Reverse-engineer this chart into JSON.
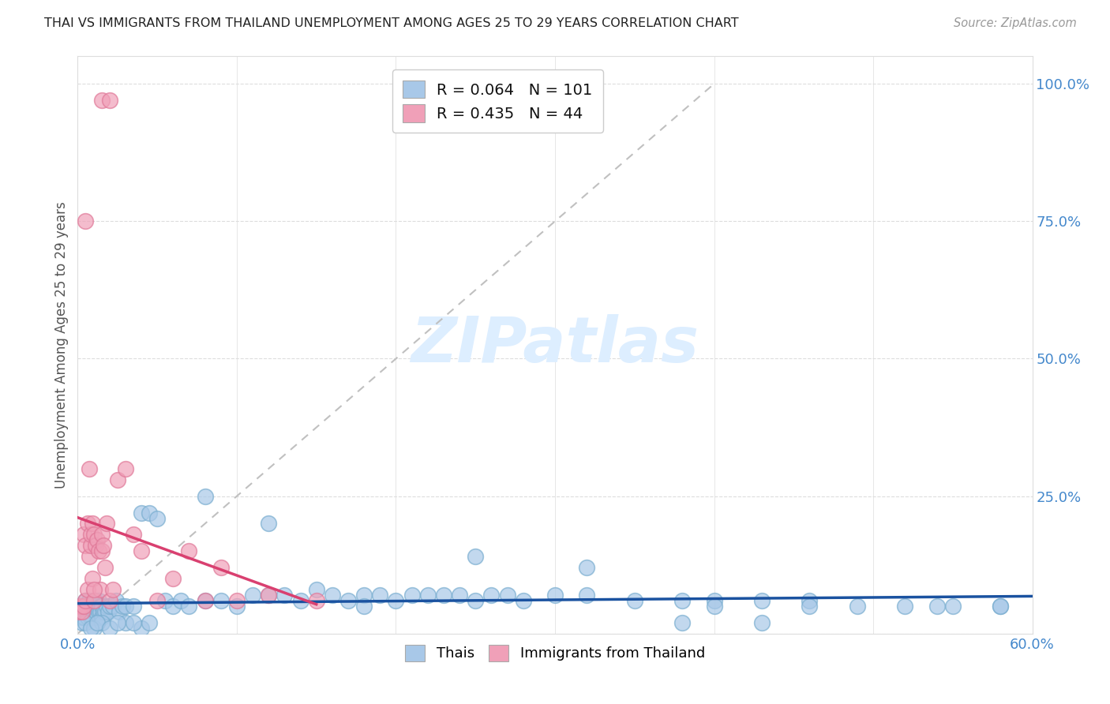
{
  "title": "THAI VS IMMIGRANTS FROM THAILAND UNEMPLOYMENT AMONG AGES 25 TO 29 YEARS CORRELATION CHART",
  "source": "Source: ZipAtlas.com",
  "ylabel": "Unemployment Among Ages 25 to 29 years",
  "xlim": [
    0.0,
    0.6
  ],
  "ylim": [
    0.0,
    1.05
  ],
  "thai_R": 0.064,
  "thai_N": 101,
  "imm_R": 0.435,
  "imm_N": 44,
  "thai_color": "#a8c8e8",
  "imm_color": "#f0a0b8",
  "thai_edge_color": "#7aaed0",
  "imm_edge_color": "#e07898",
  "thai_line_color": "#1a52a0",
  "imm_line_color": "#d94070",
  "ref_line_color": "#c0c0c0",
  "watermark_color": "#ddeeff",
  "tick_color": "#4488cc",
  "grid_color": "#dddddd",
  "spine_color": "#dddddd",
  "ylabel_color": "#555555",
  "background_color": "#ffffff",
  "thai_x": [
    0.001,
    0.002,
    0.002,
    0.003,
    0.003,
    0.004,
    0.004,
    0.005,
    0.005,
    0.006,
    0.006,
    0.007,
    0.007,
    0.008,
    0.008,
    0.009,
    0.009,
    0.01,
    0.01,
    0.011,
    0.011,
    0.012,
    0.012,
    0.013,
    0.013,
    0.014,
    0.014,
    0.015,
    0.015,
    0.016,
    0.017,
    0.018,
    0.019,
    0.02,
    0.022,
    0.024,
    0.026,
    0.028,
    0.03,
    0.035,
    0.04,
    0.045,
    0.05,
    0.055,
    0.06,
    0.065,
    0.07,
    0.08,
    0.09,
    0.1,
    0.11,
    0.12,
    0.13,
    0.14,
    0.15,
    0.16,
    0.17,
    0.18,
    0.19,
    0.2,
    0.21,
    0.22,
    0.23,
    0.24,
    0.25,
    0.26,
    0.27,
    0.28,
    0.3,
    0.32,
    0.35,
    0.38,
    0.4,
    0.43,
    0.46,
    0.49,
    0.52,
    0.55,
    0.58,
    0.005,
    0.01,
    0.015,
    0.008,
    0.012,
    0.02,
    0.03,
    0.04,
    0.025,
    0.035,
    0.045,
    0.08,
    0.12,
    0.18,
    0.25,
    0.32,
    0.4,
    0.46,
    0.54,
    0.58,
    0.38,
    0.43
  ],
  "thai_y": [
    0.04,
    0.03,
    0.05,
    0.04,
    0.02,
    0.05,
    0.03,
    0.06,
    0.04,
    0.03,
    0.05,
    0.04,
    0.06,
    0.03,
    0.05,
    0.04,
    0.03,
    0.05,
    0.04,
    0.06,
    0.04,
    0.05,
    0.03,
    0.04,
    0.06,
    0.05,
    0.04,
    0.03,
    0.05,
    0.04,
    0.04,
    0.05,
    0.04,
    0.05,
    0.05,
    0.06,
    0.04,
    0.05,
    0.05,
    0.05,
    0.22,
    0.22,
    0.21,
    0.06,
    0.05,
    0.06,
    0.05,
    0.06,
    0.06,
    0.05,
    0.07,
    0.07,
    0.07,
    0.06,
    0.08,
    0.07,
    0.06,
    0.07,
    0.07,
    0.06,
    0.07,
    0.07,
    0.07,
    0.07,
    0.06,
    0.07,
    0.07,
    0.06,
    0.07,
    0.07,
    0.06,
    0.06,
    0.06,
    0.06,
    0.06,
    0.05,
    0.05,
    0.05,
    0.05,
    0.02,
    0.01,
    0.02,
    0.01,
    0.02,
    0.01,
    0.02,
    0.01,
    0.02,
    0.02,
    0.02,
    0.25,
    0.2,
    0.05,
    0.14,
    0.12,
    0.05,
    0.05,
    0.05,
    0.05,
    0.02,
    0.02
  ],
  "imm_x": [
    0.001,
    0.002,
    0.003,
    0.004,
    0.004,
    0.005,
    0.005,
    0.006,
    0.006,
    0.007,
    0.007,
    0.008,
    0.008,
    0.009,
    0.009,
    0.01,
    0.01,
    0.011,
    0.012,
    0.013,
    0.014,
    0.015,
    0.015,
    0.016,
    0.017,
    0.018,
    0.02,
    0.022,
    0.025,
    0.03,
    0.035,
    0.04,
    0.05,
    0.06,
    0.07,
    0.08,
    0.09,
    0.1,
    0.12,
    0.15,
    0.005,
    0.01,
    0.015,
    0.02
  ],
  "imm_y": [
    0.04,
    0.05,
    0.04,
    0.05,
    0.18,
    0.06,
    0.16,
    0.08,
    0.2,
    0.14,
    0.3,
    0.16,
    0.18,
    0.1,
    0.2,
    0.06,
    0.18,
    0.16,
    0.17,
    0.15,
    0.08,
    0.15,
    0.18,
    0.16,
    0.12,
    0.2,
    0.06,
    0.08,
    0.28,
    0.3,
    0.18,
    0.15,
    0.06,
    0.1,
    0.15,
    0.06,
    0.12,
    0.06,
    0.07,
    0.06,
    0.75,
    0.08,
    0.97,
    0.97
  ]
}
